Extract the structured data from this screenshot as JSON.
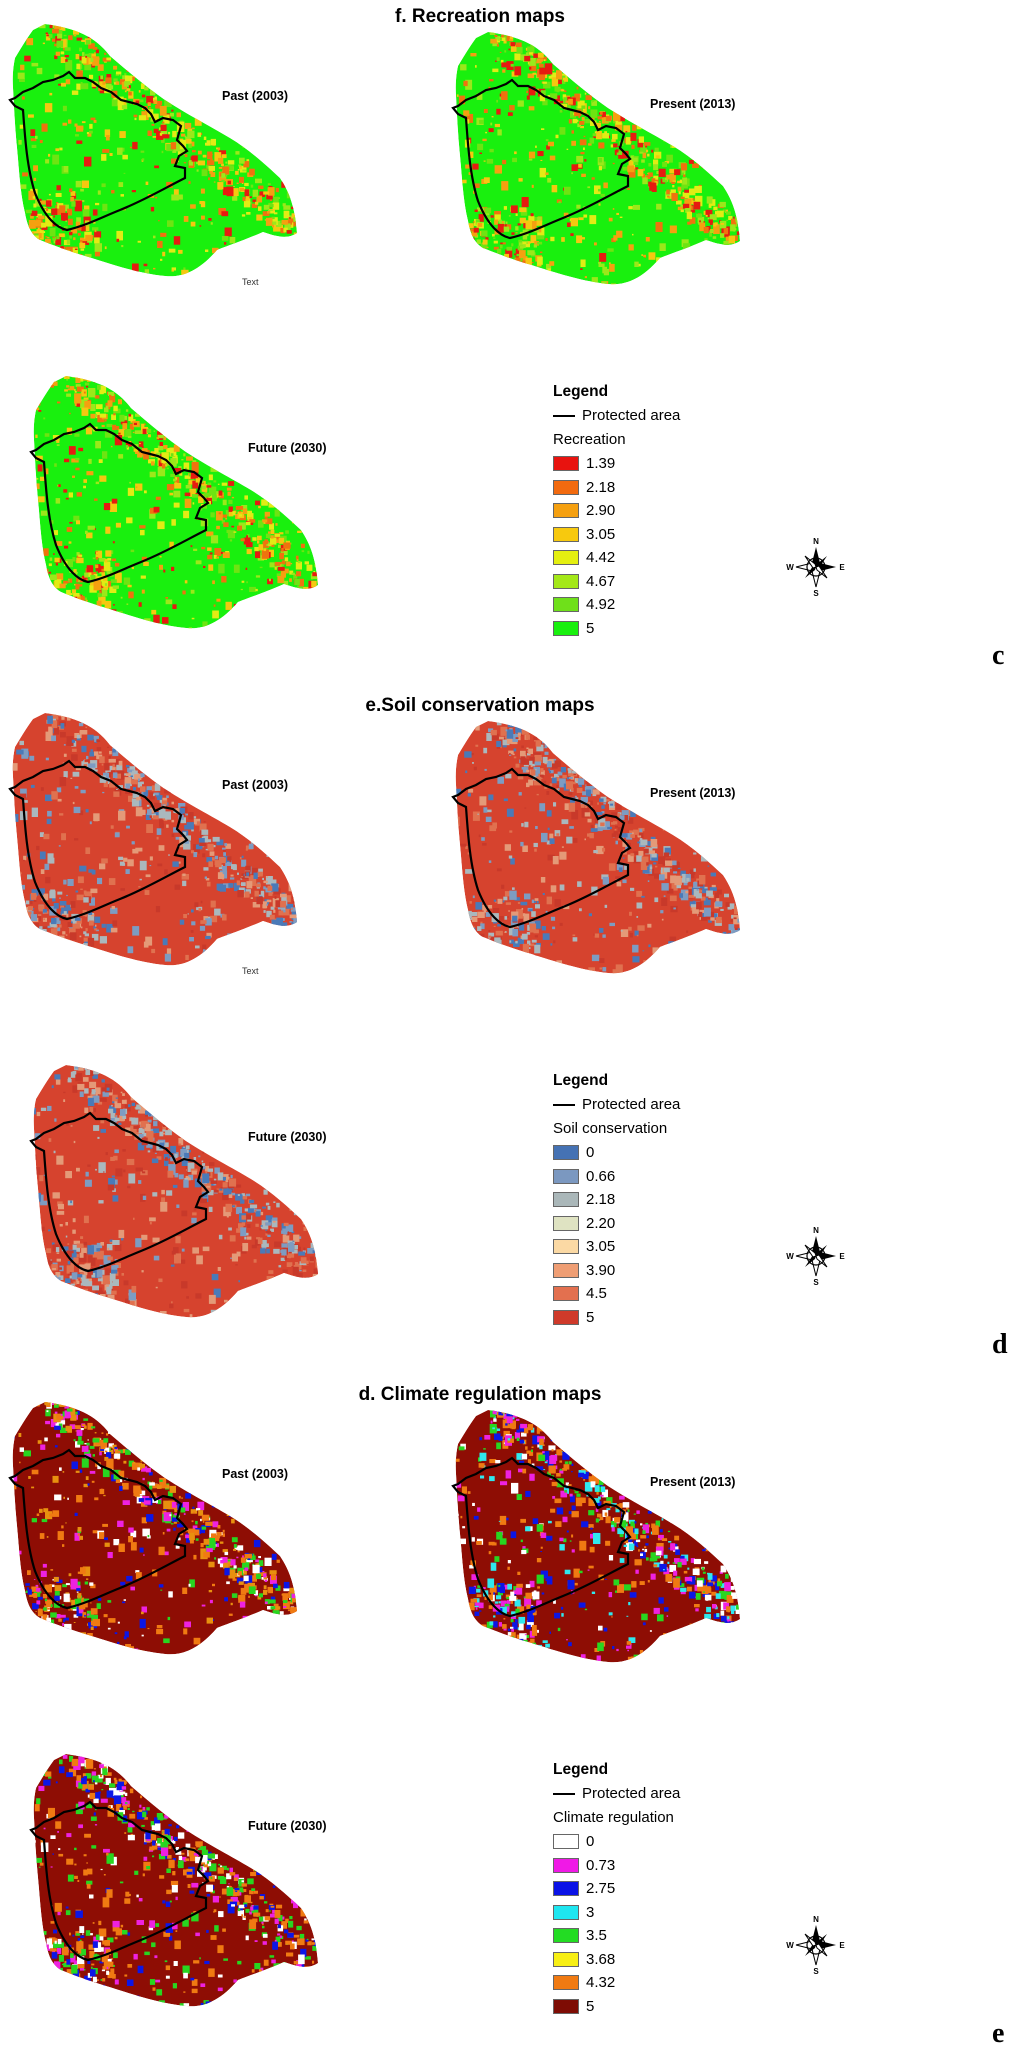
{
  "sections": [
    {
      "title": "f. Recreation maps",
      "letter": "c",
      "maps": [
        {
          "label": "Past (2003)",
          "base": "#19f00e",
          "colors": [
            "#e61b10",
            "#f0720e",
            "#f5a010",
            "#f5c810",
            "#e2ec14",
            "#9be81a",
            "#6ee412"
          ]
        },
        {
          "label": "Present (2013)",
          "base": "#19f00e",
          "colors": [
            "#e61b10",
            "#f0720e",
            "#f5a010",
            "#f5c810",
            "#e2ec14",
            "#9be81a",
            "#6ee412"
          ]
        },
        {
          "label": "Future (2030)",
          "base": "#19f00e",
          "colors": [
            "#e61b10",
            "#f0720e",
            "#f5a010",
            "#f5c810",
            "#e2ec14",
            "#9be81a",
            "#6ee412"
          ]
        }
      ],
      "stray_text": "Text",
      "legend": {
        "title": "Legend",
        "protected": "Protected area",
        "variable": "Recreation",
        "items": [
          {
            "label": "1.39",
            "color": "#e8130f"
          },
          {
            "label": "2.18",
            "color": "#f26a0f"
          },
          {
            "label": "2.90",
            "color": "#f5a010"
          },
          {
            "label": "3.05",
            "color": "#f7c90e"
          },
          {
            "label": "4.42",
            "color": "#e4ef10"
          },
          {
            "label": "4.67",
            "color": "#a4e818"
          },
          {
            "label": "4.92",
            "color": "#6fe01a"
          },
          {
            "label": "5",
            "color": "#19f00e"
          }
        ]
      }
    },
    {
      "title": "e.Soil conservation maps",
      "letter": "d",
      "maps": [
        {
          "label": "Past (2003)",
          "base": "#d6432e",
          "colors": [
            "#4a7ab8",
            "#7d9cc2",
            "#aab8bd",
            "#e49a78",
            "#e0714f",
            "#c8392a"
          ]
        },
        {
          "label": "Present (2013)",
          "base": "#d6432e",
          "colors": [
            "#4a7ab8",
            "#7d9cc2",
            "#aab8bd",
            "#e49a78",
            "#e0714f",
            "#c8392a"
          ]
        },
        {
          "label": "Future (2030)",
          "base": "#d6432e",
          "colors": [
            "#4a7ab8",
            "#7d9cc2",
            "#aab8bd",
            "#e49a78",
            "#e0714f",
            "#c8392a"
          ]
        }
      ],
      "stray_text": "Text",
      "legend": {
        "title": "Legend",
        "protected": "Protected area",
        "variable": "Soil conservation",
        "items": [
          {
            "label": "0",
            "color": "#4572b4"
          },
          {
            "label": "0.66",
            "color": "#7b98c0"
          },
          {
            "label": "2.18",
            "color": "#aab7b9"
          },
          {
            "label": "2.20",
            "color": "#dfe3c2"
          },
          {
            "label": "3.05",
            "color": "#fbd9a4"
          },
          {
            "label": "3.90",
            "color": "#ef9e74"
          },
          {
            "label": "4.5",
            "color": "#e3704f"
          },
          {
            "label": "5",
            "color": "#cf3a2a"
          }
        ]
      }
    },
    {
      "title": "d. Climate regulation maps",
      "letter": "e",
      "maps": [
        {
          "label": "Past (2003)",
          "base": "#8e0d04",
          "colors": [
            "#f07a12",
            "#f07a12",
            "#28d620",
            "#ffffff",
            "#0c16e6",
            "#ee22e0",
            "#e8900f"
          ]
        },
        {
          "label": "Present (2013)",
          "base": "#8e0d04",
          "colors": [
            "#f07a12",
            "#f07a12",
            "#28d620",
            "#ffffff",
            "#0c16e6",
            "#ee22e0",
            "#30e8ee"
          ]
        },
        {
          "label": "Future (2030)",
          "base": "#8e0d04",
          "colors": [
            "#f07a12",
            "#f07a12",
            "#28d620",
            "#ffffff",
            "#0c16e6",
            "#ee22e0",
            "#28d620"
          ]
        }
      ],
      "stray_text": "",
      "legend": {
        "title": "Legend",
        "protected": "Protected area",
        "variable": "Climate regulation",
        "items": [
          {
            "label": "0",
            "color": "#ffffff"
          },
          {
            "label": "0.73",
            "color": "#f019e6"
          },
          {
            "label": "2.75",
            "color": "#0a12e6"
          },
          {
            "label": "3",
            "color": "#1ee6f0"
          },
          {
            "label": "3.5",
            "color": "#23dc23"
          },
          {
            "label": "3.68",
            "color": "#f7ef14"
          },
          {
            "label": "4.32",
            "color": "#f07a12"
          },
          {
            "label": "5",
            "color": "#7e0c04"
          }
        ]
      }
    }
  ],
  "compass": {
    "n": "N",
    "s": "S",
    "e": "E",
    "w": "W",
    "icon": "north-arrow-compass-icon"
  }
}
